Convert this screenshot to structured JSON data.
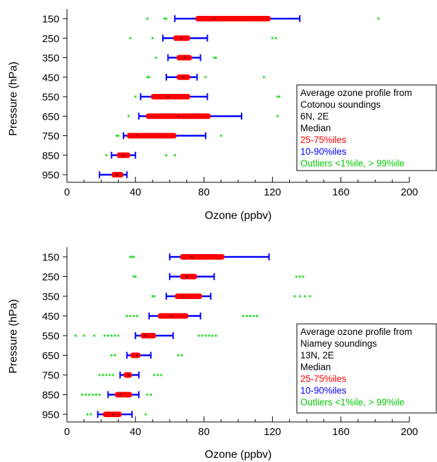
{
  "chart_data": [
    {
      "type": "box",
      "orientation": "horizontal",
      "xlabel": "Ozone (ppbv)",
      "ylabel": "Pressure (hPa)",
      "xlim": [
        0,
        200
      ],
      "xticks": [
        0,
        40,
        80,
        120,
        160,
        200
      ],
      "x_minor_step": 10,
      "categories": [
        "150",
        "250",
        "350",
        "450",
        "550",
        "650",
        "750",
        "850",
        "950"
      ],
      "legend_position": "right",
      "legend": {
        "lines": [
          {
            "text": "Average ozone profile from",
            "color": "#000000"
          },
          {
            "text": "Cotonou soundings",
            "color": "#000000"
          },
          {
            "text": "6N, 2E",
            "color": "#000000"
          },
          {
            "text": "Median",
            "color": "#000000"
          },
          {
            "text": "25-75%iles",
            "color": "#ff0000"
          },
          {
            "text": "10-90%iles",
            "color": "#0000ff"
          },
          {
            "text": "Outliers <1%ile, > 99%ile",
            "color": "#00cc00"
          }
        ]
      },
      "boxes": [
        {
          "p10": 63,
          "p25": 75,
          "median": 86,
          "p75": 119,
          "p90": 136,
          "outliers": [
            47,
            57,
            58,
            182
          ]
        },
        {
          "p10": 56,
          "p25": 62,
          "median": 67,
          "p75": 72,
          "p90": 82,
          "outliers": [
            37,
            50,
            57,
            120,
            122
          ]
        },
        {
          "p10": 59,
          "p25": 64,
          "median": 69,
          "p75": 73,
          "p90": 78,
          "outliers": [
            52,
            86,
            87
          ]
        },
        {
          "p10": 58,
          "p25": 64,
          "median": 68,
          "p75": 72,
          "p90": 76,
          "outliers": [
            47,
            48,
            81,
            115
          ]
        },
        {
          "p10": 43,
          "p25": 49,
          "median": 59,
          "p75": 72,
          "p90": 82,
          "outliers": [
            40,
            123,
            124
          ]
        },
        {
          "p10": 42,
          "p25": 46,
          "median": 65,
          "p75": 84,
          "p90": 102,
          "outliers": [
            36,
            123
          ]
        },
        {
          "p10": 33,
          "p25": 35,
          "median": 41,
          "p75": 64,
          "p90": 81,
          "outliers": [
            29,
            30,
            90
          ]
        },
        {
          "p10": 26,
          "p25": 29,
          "median": 33,
          "p75": 37,
          "p90": 40,
          "outliers": [
            23,
            58,
            63
          ]
        },
        {
          "p10": 19,
          "p25": 26,
          "median": 29,
          "p75": 33,
          "p90": 35,
          "outliers": []
        }
      ]
    },
    {
      "type": "box",
      "orientation": "horizontal",
      "xlabel": "Ozone (ppbv)",
      "ylabel": "Pressure (hPa)",
      "xlim": [
        0,
        200
      ],
      "xticks": [
        0,
        40,
        80,
        120,
        160,
        200
      ],
      "x_minor_step": 10,
      "categories": [
        "150",
        "250",
        "350",
        "450",
        "550",
        "650",
        "750",
        "850",
        "950"
      ],
      "legend_position": "right",
      "legend": {
        "lines": [
          {
            "text": "Average ozone profile from",
            "color": "#000000"
          },
          {
            "text": "Niamey soundings",
            "color": "#000000"
          },
          {
            "text": "13N, 2E",
            "color": "#000000"
          },
          {
            "text": "Median",
            "color": "#000000"
          },
          {
            "text": "25-75%iles",
            "color": "#ff0000"
          },
          {
            "text": "10-90%iles",
            "color": "#0000ff"
          },
          {
            "text": "Outliers <1%ile, > 99%ile",
            "color": "#00cc00"
          }
        ]
      },
      "boxes": [
        {
          "p10": 60,
          "p25": 66,
          "median": 73,
          "p75": 92,
          "p90": 118,
          "outliers": [
            37,
            38,
            39
          ]
        },
        {
          "p10": 60,
          "p25": 66,
          "median": 70,
          "p75": 76,
          "p90": 86,
          "outliers": [
            39,
            40,
            134,
            136,
            138
          ]
        },
        {
          "p10": 58,
          "p25": 63,
          "median": 68,
          "p75": 79,
          "p90": 84,
          "outliers": [
            50,
            51,
            133,
            136,
            139,
            142
          ]
        },
        {
          "p10": 48,
          "p25": 53,
          "median": 61,
          "p75": 71,
          "p90": 78,
          "outliers": [
            35,
            37,
            39,
            41,
            103,
            105,
            107,
            109,
            111
          ]
        },
        {
          "p10": 40,
          "p25": 43,
          "median": 46,
          "p75": 52,
          "p90": 62,
          "outliers": [
            5,
            10,
            16,
            22,
            24,
            26,
            28,
            30,
            77,
            79,
            81,
            83,
            85,
            87
          ]
        },
        {
          "p10": 35,
          "p25": 37,
          "median": 41,
          "p75": 43,
          "p90": 49,
          "outliers": [
            26,
            28,
            65,
            67
          ]
        },
        {
          "p10": 31,
          "p25": 33,
          "median": 36,
          "p75": 38,
          "p90": 42,
          "outliers": [
            19,
            21,
            23,
            25,
            27,
            51,
            53,
            55
          ]
        },
        {
          "p10": 24,
          "p25": 28,
          "median": 31,
          "p75": 38,
          "p90": 42,
          "outliers": [
            9,
            11,
            13,
            15,
            17,
            19,
            47,
            49
          ]
        },
        {
          "p10": 18,
          "p25": 21,
          "median": 27,
          "p75": 32,
          "p90": 38,
          "outliers": [
            12,
            14,
            46
          ]
        }
      ]
    }
  ]
}
